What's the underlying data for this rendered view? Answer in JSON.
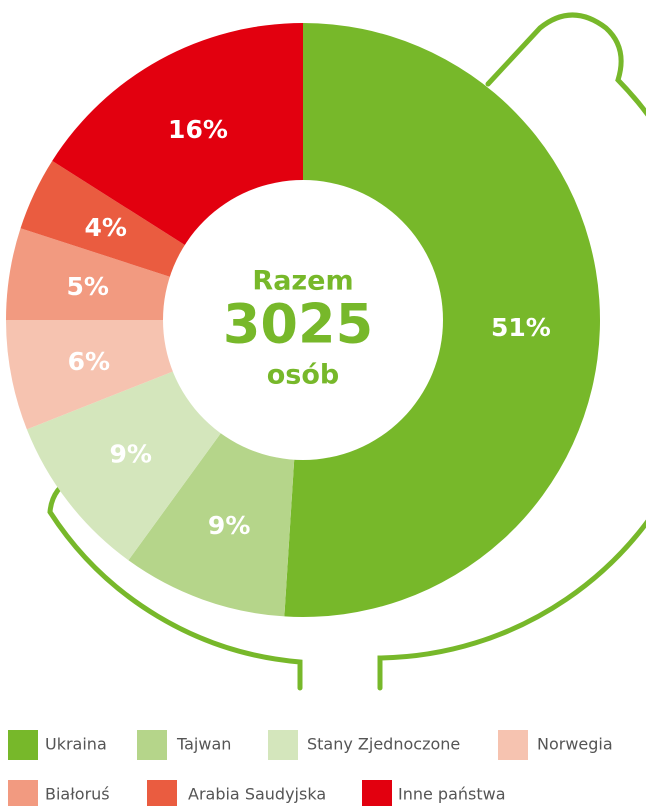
{
  "chart_data": {
    "type": "donut",
    "categories": [
      "Ukraina",
      "Tajwan",
      "Stany Zjednoczone",
      "Norwegia",
      "Białoruś",
      "Arabia Saudyjska",
      "Inne państwa"
    ],
    "values": [
      51,
      9,
      9,
      6,
      5,
      4,
      16
    ],
    "value_labels": [
      "51%",
      "9%",
      "9%",
      "6%",
      "5%",
      "4%",
      "16%"
    ],
    "colors": [
      "#77b82a",
      "#b5d58a",
      "#d4e6bc",
      "#f6c3b0",
      "#f29a80",
      "#ea5c40",
      "#e2000f"
    ],
    "center": {
      "line1": "Razem",
      "total": "3025",
      "line2": "osób"
    },
    "legend": "bottom"
  }
}
